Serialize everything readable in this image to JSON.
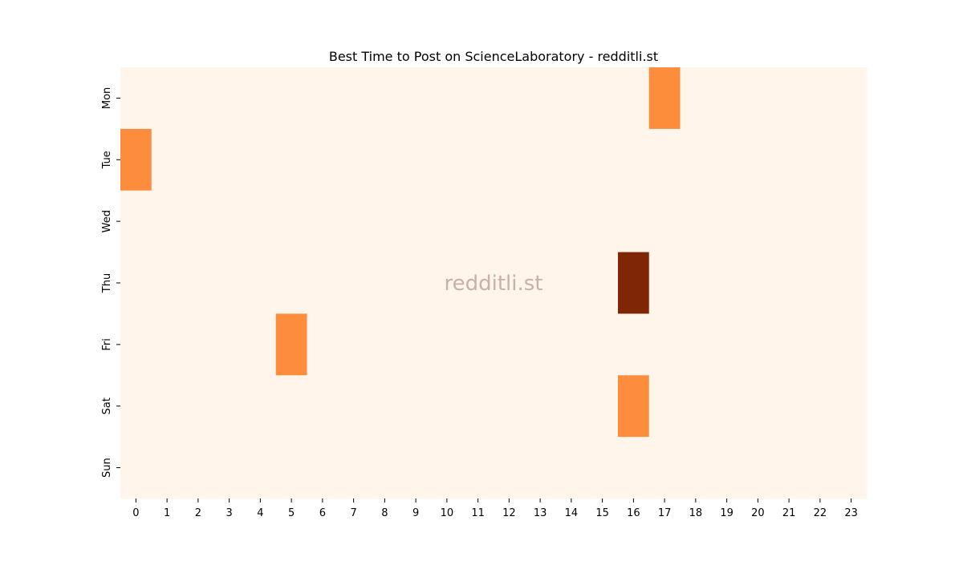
{
  "chart_data": {
    "type": "heatmap",
    "title": "Best Time to Post on ScienceLaboratory - redditli.st",
    "xlabel": "",
    "ylabel": "",
    "x_categories": [
      "0",
      "1",
      "2",
      "3",
      "4",
      "5",
      "6",
      "7",
      "8",
      "9",
      "10",
      "11",
      "12",
      "13",
      "14",
      "15",
      "16",
      "17",
      "18",
      "19",
      "20",
      "21",
      "22",
      "23"
    ],
    "y_categories": [
      "Mon",
      "Tue",
      "Wed",
      "Thu",
      "Fri",
      "Sat",
      "Sun"
    ],
    "values": [
      [
        0,
        0,
        0,
        0,
        0,
        0,
        0,
        0,
        0,
        0,
        0,
        0,
        0,
        0,
        0,
        0,
        0,
        1,
        0,
        0,
        0,
        0,
        0,
        0
      ],
      [
        1,
        0,
        0,
        0,
        0,
        0,
        0,
        0,
        0,
        0,
        0,
        0,
        0,
        0,
        0,
        0,
        0,
        0,
        0,
        0,
        0,
        0,
        0,
        0
      ],
      [
        0,
        0,
        0,
        0,
        0,
        0,
        0,
        0,
        0,
        0,
        0,
        0,
        0,
        0,
        0,
        0,
        0,
        0,
        0,
        0,
        0,
        0,
        0,
        0
      ],
      [
        0,
        0,
        0,
        0,
        0,
        0,
        0,
        0,
        0,
        0,
        0,
        0,
        0,
        0,
        0,
        0,
        2,
        0,
        0,
        0,
        0,
        0,
        0,
        0
      ],
      [
        0,
        0,
        0,
        0,
        0,
        1,
        0,
        0,
        0,
        0,
        0,
        0,
        0,
        0,
        0,
        0,
        0,
        0,
        0,
        0,
        0,
        0,
        0,
        0
      ],
      [
        0,
        0,
        0,
        0,
        0,
        0,
        0,
        0,
        0,
        0,
        0,
        0,
        0,
        0,
        0,
        0,
        1,
        0,
        0,
        0,
        0,
        0,
        0,
        0
      ],
      [
        0,
        0,
        0,
        0,
        0,
        0,
        0,
        0,
        0,
        0,
        0,
        0,
        0,
        0,
        0,
        0,
        0,
        0,
        0,
        0,
        0,
        0,
        0,
        0
      ]
    ],
    "value_range": [
      0,
      2
    ],
    "colormap": [
      "#fff5eb",
      "#fd8d3c",
      "#7f2704"
    ],
    "colorbar": false,
    "grid": false,
    "watermark": "redditli.st"
  }
}
